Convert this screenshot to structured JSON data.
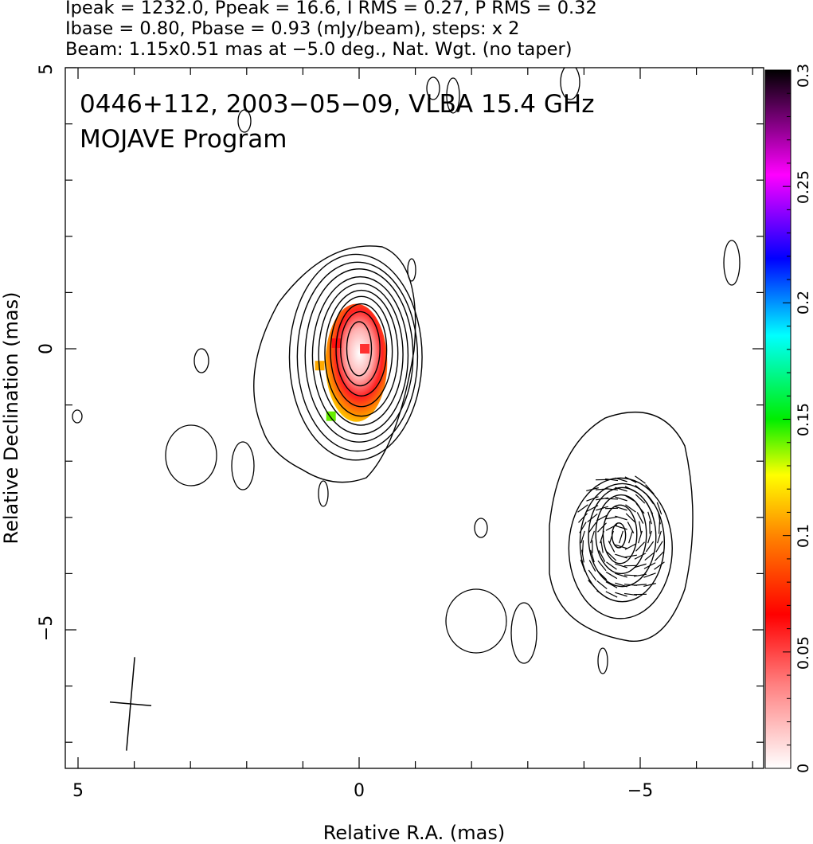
{
  "header": {
    "line1": "Ipeak = 1232.0, Ppeak = 16.6, I RMS = 0.27, P RMS = 0.32",
    "line2": "Ibase = 0.80, Pbase = 0.93 (mJy/beam), steps: x 2",
    "line3": "Beam: 1.15x0.51 mas at −5.0 deg., Nat. Wgt. (no taper)"
  },
  "chart_data": {
    "type": "heatmap",
    "title_line1": "0446+112, 2003−05−09, VLBA 15.4 GHz",
    "title_line2": "MOJAVE Program",
    "xlabel": "Relative R.A. (mas)",
    "ylabel": "Relative Declination (mas)",
    "xlim": [
      5.25,
      -7.2
    ],
    "ylim": [
      -7.4,
      5.0
    ],
    "x_tick_labels": [
      "5",
      "0",
      "−5"
    ],
    "y_tick_labels": [
      "5",
      "0",
      "−5"
    ],
    "colorbar": {
      "range": [
        0,
        0.3
      ],
      "tick_labels": [
        "0",
        "0.05",
        "0.1",
        "0.15",
        "0.2",
        "0.25",
        "0.3"
      ],
      "colors": [
        "#ffffff",
        "#ff0000",
        "#ffa500",
        "#ffff00",
        "#00ff00",
        "#00ffff",
        "#0000ff",
        "#ff00ff",
        "#000000"
      ]
    },
    "beam": {
      "major_mas": 1.15,
      "minor_mas": 0.51,
      "pa_deg": -5.0
    },
    "core": {
      "x": 0.0,
      "y": 0.0,
      "peak_mJy_per_beam": 1232.0
    },
    "contours_core": [
      {
        "cx": 0.0,
        "cy": 0.0,
        "rx": 0.22,
        "ry": 0.48
      },
      {
        "cx": -0.02,
        "cy": 0.0,
        "rx": 0.35,
        "ry": 0.66
      },
      {
        "cx": -0.04,
        "cy": -0.02,
        "rx": 0.45,
        "ry": 0.82
      },
      {
        "cx": -0.04,
        "cy": -0.05,
        "rx": 0.55,
        "ry": 0.98
      },
      {
        "cx": -0.04,
        "cy": -0.08,
        "rx": 0.65,
        "ry": 1.12
      },
      {
        "cx": -0.03,
        "cy": -0.1,
        "rx": 0.75,
        "ry": 1.26
      },
      {
        "cx": -0.02,
        "cy": -0.12,
        "rx": 0.85,
        "ry": 1.4
      },
      {
        "cx": 0.0,
        "cy": -0.12,
        "rx": 0.96,
        "ry": 1.54
      },
      {
        "cx": 0.03,
        "cy": -0.14,
        "rx": 1.07,
        "ry": 1.68
      },
      {
        "cx": 0.06,
        "cy": -0.15,
        "rx": 1.18,
        "ry": 1.83
      }
    ],
    "contours_jet": [
      {
        "cx": -4.65,
        "cy": -3.55,
        "rx": 0.92,
        "ry": 1.25
      },
      {
        "cx": -4.68,
        "cy": -3.45,
        "rx": 0.75,
        "ry": 1.05
      },
      {
        "cx": -4.68,
        "cy": -3.35,
        "rx": 0.6,
        "ry": 0.88
      },
      {
        "cx": -4.66,
        "cy": -3.3,
        "rx": 0.45,
        "ry": 0.7
      },
      {
        "cx": -4.64,
        "cy": -3.3,
        "rx": 0.3,
        "ry": 0.52
      },
      {
        "cx": -4.62,
        "cy": -3.32,
        "rx": 0.12,
        "ry": 0.22
      }
    ],
    "polarization_pixels": [
      {
        "x": -0.1,
        "y": 0.0,
        "v": 0.02
      },
      {
        "x": 0.4,
        "y": 0.1,
        "v": 0.035
      },
      {
        "x": 0.7,
        "y": -0.3,
        "v": 0.1
      },
      {
        "x": 0.5,
        "y": -1.2,
        "v": 0.15
      }
    ]
  }
}
